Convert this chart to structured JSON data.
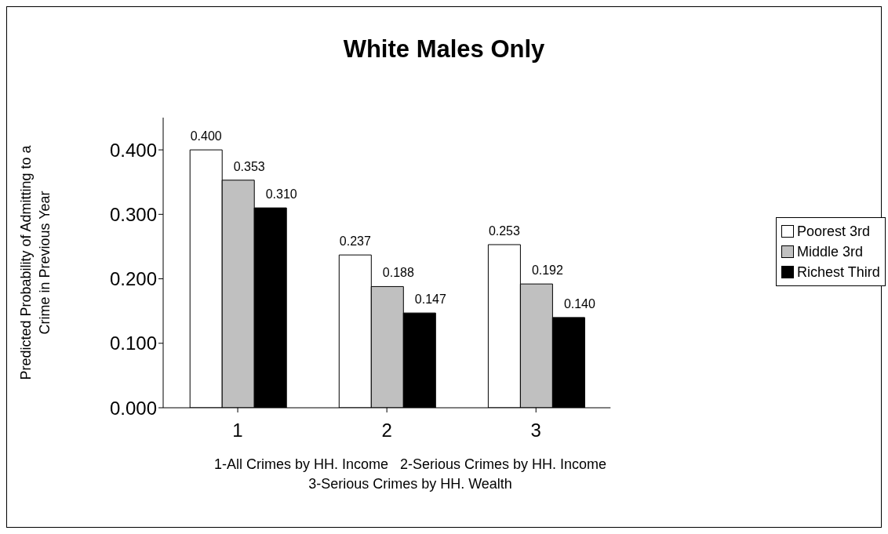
{
  "chart_data": {
    "type": "bar",
    "title": "White Males Only",
    "xlabel": "1-All Crimes by HH. Income   2-Serious Crimes by HH. Income\n3-Serious Crimes by HH. Wealth",
    "ylabel": "Predicted Probability of Admitting to a\nCrime in Previous Year",
    "categories": [
      "1",
      "2",
      "3"
    ],
    "series": [
      {
        "name": "Poorest 3rd",
        "color": "#ffffff",
        "values": [
          0.4,
          0.237,
          0.253
        ],
        "value_labels": [
          "0.400",
          "0.237",
          "0.253"
        ]
      },
      {
        "name": "Middle 3rd",
        "color": "#c0c0c0",
        "values": [
          0.353,
          0.188,
          0.192
        ],
        "value_labels": [
          "0.353",
          "0.188",
          "0.192"
        ]
      },
      {
        "name": "Richest Third",
        "color": "#000000",
        "values": [
          0.31,
          0.147,
          0.14
        ],
        "value_labels": [
          "0.310",
          "0.147",
          "0.140"
        ]
      }
    ],
    "ylim": [
      0,
      0.45
    ],
    "yticks": [
      {
        "value": 0,
        "label": "0.000"
      },
      {
        "value": 0.1,
        "label": "0.100"
      },
      {
        "value": 0.2,
        "label": "0.200"
      },
      {
        "value": 0.3,
        "label": "0.300"
      },
      {
        "value": 0.4,
        "label": "0.400"
      }
    ],
    "grid": false,
    "legend": "right"
  }
}
